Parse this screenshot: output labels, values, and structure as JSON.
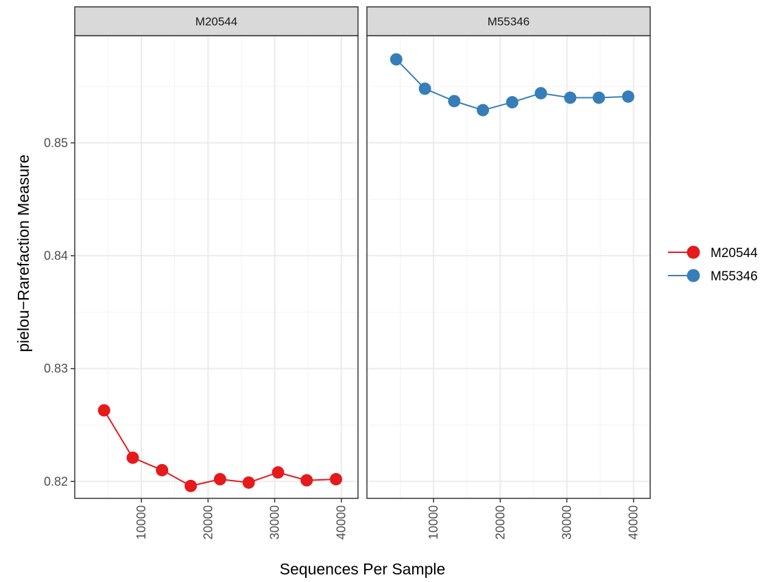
{
  "chart_data": {
    "type": "line",
    "xlabel": "Sequences Per Sample",
    "ylabel": "pielou−Rarefaction Measure",
    "xlim": [
      0,
      42500
    ],
    "ylim": [
      0.8185,
      0.8595
    ],
    "x_ticks": [
      10000,
      20000,
      30000,
      40000
    ],
    "x_tick_labels": [
      "10000",
      "20000",
      "30000",
      "40000"
    ],
    "y_ticks": [
      0.82,
      0.83,
      0.84,
      0.85
    ],
    "y_tick_labels": [
      "0.82",
      "0.83",
      "0.84",
      "0.85"
    ],
    "grid": true,
    "legend_position": "right",
    "facets": [
      {
        "label": "M20544",
        "series": [
          {
            "name": "M20544",
            "color": "#e41a1c",
            "x": [
              4400,
              8700,
              13100,
              17400,
              21800,
              26100,
              30500,
              34800,
              39200
            ],
            "y": [
              0.8263,
              0.8221,
              0.821,
              0.8196,
              0.8202,
              0.8199,
              0.8208,
              0.8201,
              0.8202
            ]
          }
        ]
      },
      {
        "label": "M55346",
        "series": [
          {
            "name": "M55346",
            "color": "#377eb8",
            "x": [
              4400,
              8700,
              13100,
              17400,
              21800,
              26100,
              30500,
              34800,
              39200
            ],
            "y": [
              0.8574,
              0.8548,
              0.8537,
              0.8529,
              0.8536,
              0.8544,
              0.854,
              0.854,
              0.8541
            ]
          }
        ]
      }
    ],
    "legend": [
      {
        "label": "M20544",
        "color": "#e41a1c"
      },
      {
        "label": "M55346",
        "color": "#377eb8"
      }
    ]
  }
}
